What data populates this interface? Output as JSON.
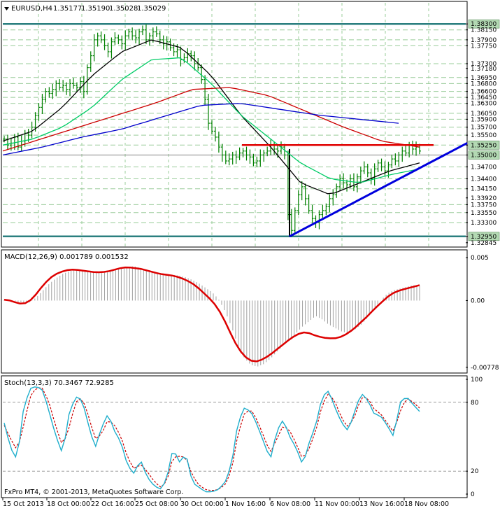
{
  "chart_data": [
    {
      "type": "candlestick",
      "title": "EURUSD,H4",
      "ohlc_readout": [
        "1.35177",
        "1.35190",
        "1.35028",
        "1.35029"
      ],
      "ylim": [
        1.327,
        1.3855
      ],
      "x_dates": [
        "15 Oct 2013",
        "18 Oct 00:00",
        "22 Oct 16:00",
        "25 Oct 08:00",
        "30 Oct 00:00",
        "1 Nov 16:00",
        "6 Nov 08:00",
        "11 Nov 00:00",
        "13 Nov 16:00",
        "18 Nov 08:00"
      ],
      "y_tick_labels": [
        "1.38300",
        "1.38150",
        "1.37900",
        "1.37750",
        "1.37300",
        "1.37180",
        "1.36950",
        "1.36800",
        "1.36600",
        "1.36450",
        "1.36300",
        "1.36050",
        "1.35900",
        "1.35700",
        "1.35500",
        "1.35250",
        "1.35000",
        "1.34700",
        "1.34400",
        "1.34150",
        "1.33920",
        "1.33750",
        "1.33550",
        "1.33300",
        "1.32950",
        "1.32845"
      ],
      "highlighted_levels": [
        1.383,
        1.3525,
        1.35,
        1.3295
      ],
      "grid_levels": [
        1.3815,
        1.379,
        1.3775,
        1.373,
        1.3695,
        1.368,
        1.366,
        1.3645,
        1.363,
        1.3605,
        1.359,
        1.357,
        1.355,
        1.3525,
        1.35,
        1.347,
        1.344,
        1.3415,
        1.3375,
        1.3355,
        1.333
      ],
      "candles_close": [
        1.354,
        1.3525,
        1.353,
        1.3545,
        1.352,
        1.3535,
        1.3555,
        1.355,
        1.357,
        1.36,
        1.362,
        1.364,
        1.366,
        1.3655,
        1.3665,
        1.368,
        1.367,
        1.3675,
        1.3665,
        1.368,
        1.3675,
        1.367,
        1.3685,
        1.366,
        1.372,
        1.375,
        1.379,
        1.38,
        1.379,
        1.3775,
        1.376,
        1.3785,
        1.3795,
        1.379,
        1.378,
        1.38,
        1.381,
        1.38,
        1.3795,
        1.381,
        1.3815,
        1.379,
        1.38,
        1.381,
        1.3805,
        1.379,
        1.378,
        1.3785,
        1.377,
        1.376,
        1.3765,
        1.374,
        1.3745,
        1.3755,
        1.375,
        1.373,
        1.372,
        1.369,
        1.364,
        1.358,
        1.356,
        1.3545,
        1.352,
        1.35,
        1.3485,
        1.349,
        1.35,
        1.3495,
        1.3505,
        1.351,
        1.35,
        1.3495,
        1.348,
        1.3485,
        1.35,
        1.3505,
        1.351,
        1.3525,
        1.3515,
        1.351,
        1.352,
        1.35,
        1.335,
        1.331,
        1.336,
        1.34,
        1.342,
        1.339,
        1.336,
        1.334,
        1.333,
        1.335,
        1.336,
        1.337,
        1.339,
        1.34,
        1.342,
        1.344,
        1.343,
        1.3425,
        1.344,
        1.342,
        1.3445,
        1.346,
        1.347,
        1.3455,
        1.344,
        1.3465,
        1.348,
        1.347,
        1.346,
        1.3475,
        1.349,
        1.3485,
        1.35,
        1.351,
        1.3505,
        1.3525,
        1.3515,
        1.352,
        1.351
      ],
      "moving_averages": [
        {
          "color": "#000000",
          "values": [
            1.3535,
            1.356,
            1.362,
            1.37,
            1.376,
            1.379,
            1.377,
            1.37,
            1.36,
            1.352,
            1.343,
            1.34,
            1.343,
            1.346,
            1.348
          ]
        },
        {
          "color": "#00cc66",
          "values": [
            1.3525,
            1.354,
            1.357,
            1.362,
            1.369,
            1.374,
            1.3745,
            1.368,
            1.36,
            1.354,
            1.348,
            1.344,
            1.343,
            1.345,
            1.3465
          ]
        },
        {
          "color": "#cc0000",
          "values": [
            1.351,
            1.354,
            1.357,
            1.36,
            1.363,
            1.3665,
            1.367,
            1.365,
            1.361,
            1.357,
            1.3535,
            1.352
          ]
        },
        {
          "color": "#0000cc",
          "values": [
            1.35,
            1.352,
            1.3545,
            1.3565,
            1.3595,
            1.3625,
            1.363,
            1.3615,
            1.36,
            1.359,
            1.358
          ]
        }
      ],
      "annotations": [
        {
          "kind": "horizontal",
          "color": "#e00000",
          "level": 1.3525
        },
        {
          "kind": "trendline",
          "color": "#0000dd",
          "from": 1.3295,
          "to": 1.3525
        }
      ]
    },
    {
      "type": "macd",
      "title": "MACD(12,26,9) 0.001789 0.001532",
      "ylim": [
        -0.0082,
        0.0055
      ],
      "y_tick_labels": [
        "0.005",
        "0.00",
        "-0.00778"
      ],
      "histogram": [
        0.0001,
        0.0,
        -0.0001,
        -0.0003,
        -0.0002,
        0.0004,
        0.0012,
        0.002,
        0.0026,
        0.0031,
        0.0034,
        0.0036,
        0.0035,
        0.0034,
        0.0033,
        0.0032,
        0.0033,
        0.0035,
        0.0037,
        0.0039,
        0.004,
        0.0038,
        0.0036,
        0.0034,
        0.0032,
        0.0031,
        0.003,
        0.0029,
        0.0027,
        0.0024,
        0.002,
        0.0015,
        0.001,
        0.0002,
        -0.0012,
        -0.003,
        -0.0052,
        -0.0067,
        -0.0075,
        -0.0077,
        -0.0074,
        -0.0068,
        -0.006,
        -0.0052,
        -0.0045,
        -0.0038,
        -0.003,
        -0.0024,
        -0.0018,
        -0.0022,
        -0.0028,
        -0.0032,
        -0.0036,
        -0.0038,
        -0.0034,
        -0.0028,
        -0.002,
        -0.001,
        0.0,
        0.0008,
        0.0012,
        0.0014,
        0.0016,
        0.0018,
        0.0017
      ],
      "signal": [
        0.0001,
        0.0,
        -0.0003,
        -0.0004,
        0.0,
        0.0008,
        0.0018,
        0.0026,
        0.0031,
        0.0034,
        0.0036,
        0.0036,
        0.0035,
        0.0034,
        0.0033,
        0.0033,
        0.0034,
        0.0036,
        0.0038,
        0.0039,
        0.0038,
        0.0037,
        0.0035,
        0.0033,
        0.0031,
        0.003,
        0.0029,
        0.0027,
        0.0024,
        0.002,
        0.0014,
        0.0007,
        0.0,
        -0.001,
        -0.0024,
        -0.004,
        -0.0055,
        -0.0065,
        -0.007,
        -0.0071,
        -0.0068,
        -0.0063,
        -0.0057,
        -0.0051,
        -0.0045,
        -0.004,
        -0.0037,
        -0.0038,
        -0.0041,
        -0.0043,
        -0.0044,
        -0.0044,
        -0.0042,
        -0.0038,
        -0.0032,
        -0.0025,
        -0.0018,
        -0.001,
        -0.0003,
        0.0004,
        0.0009,
        0.0012,
        0.0014,
        0.0016,
        0.0018
      ]
    },
    {
      "type": "stochastic",
      "title": "Stoch(13,3,3) 70.3467 72.9285",
      "ylim": [
        0,
        100
      ],
      "y_tick_labels": [
        "100",
        "80",
        "20",
        "0"
      ],
      "main": [
        62,
        40,
        30,
        75,
        92,
        94,
        90,
        70,
        50,
        35,
        70,
        85,
        82,
        60,
        40,
        58,
        70,
        55,
        45,
        25,
        18,
        30,
        15,
        8,
        4,
        12,
        40,
        28,
        35,
        10,
        6,
        2,
        2,
        4,
        10,
        25,
        62,
        75,
        72,
        60,
        45,
        30,
        55,
        65,
        50,
        40,
        25,
        45,
        60,
        85,
        90,
        75,
        62,
        55,
        72,
        88,
        82,
        70,
        68,
        60,
        50,
        80,
        85,
        78,
        72
      ],
      "signal": [
        60,
        48,
        38,
        60,
        85,
        93,
        92,
        78,
        58,
        42,
        58,
        80,
        84,
        68,
        48,
        52,
        65,
        60,
        50,
        32,
        22,
        26,
        20,
        12,
        6,
        10,
        32,
        33,
        32,
        16,
        8,
        4,
        3,
        4,
        8,
        20,
        52,
        70,
        74,
        64,
        50,
        36,
        48,
        60,
        55,
        44,
        30,
        40,
        55,
        78,
        88,
        80,
        66,
        58,
        68,
        84,
        84,
        74,
        70,
        62,
        54,
        72,
        84,
        80,
        75
      ]
    }
  ],
  "footer": {
    "copyright": "FxPro MT4, © 2001-2013, MetaQuotes Software Corp."
  },
  "colors": {
    "background": "#ffffff",
    "grid": "#99cc99",
    "bars": "#008000",
    "highlight_label": "#b3d9b3",
    "macd_signal": "#dd0000",
    "macd_hist": "#a0a0a0",
    "stoch_main": "#1faecc",
    "stoch_signal": "#cc0000"
  }
}
